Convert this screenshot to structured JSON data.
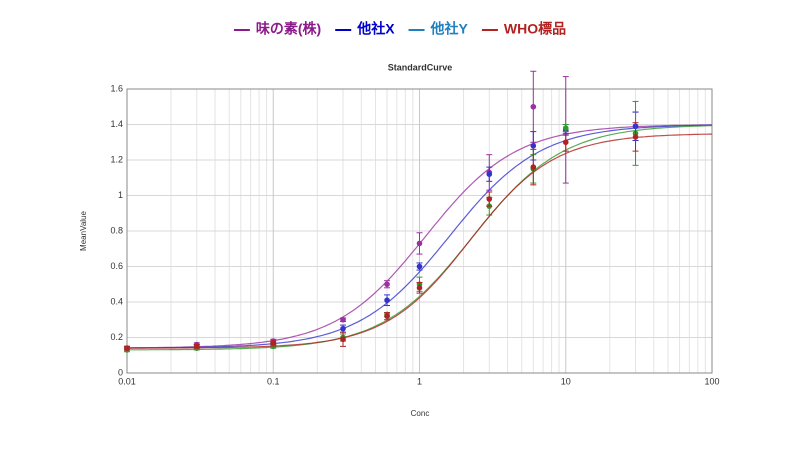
{
  "chart_data": {
    "type": "dose-response",
    "title": "StandardCurve",
    "x_label": "Conc",
    "y_label": "MeanValue",
    "x_scale": "log",
    "grid": true,
    "xlim": [
      0.01,
      100
    ],
    "xticks": [
      0.01,
      0.1,
      1,
      10,
      100
    ],
    "ylim": [
      0,
      1.6
    ],
    "yticks": [
      0,
      0.2,
      0.4,
      0.6,
      0.8,
      1,
      1.2,
      1.4,
      1.6
    ],
    "x": [
      0.01,
      0.03,
      0.1,
      0.3,
      0.6,
      1,
      3,
      6,
      10,
      30
    ],
    "series": [
      {
        "name": "味の素(株)",
        "color": "#9b30a0",
        "legend_color": "#8b1a8b",
        "values": [
          0.14,
          0.16,
          0.18,
          0.3,
          0.5,
          0.73,
          1.13,
          1.5,
          1.37,
          1.39
        ],
        "errors": [
          0.01,
          0.01,
          0.01,
          0.01,
          0.02,
          0.06,
          0.1,
          0.2,
          0.3,
          0.08
        ],
        "curve": {
          "bottom": 0.14,
          "top": 1.4,
          "ec50": 1.1,
          "hill": 1.4
        }
      },
      {
        "name": "他社X",
        "color": "#3333cc",
        "legend_color": "#0000cc",
        "values": [
          0.14,
          0.15,
          0.16,
          0.25,
          0.41,
          0.6,
          1.12,
          1.28,
          1.37,
          1.39
        ],
        "errors": [
          0.01,
          0.01,
          0.01,
          0.02,
          0.03,
          0.02,
          0.04,
          0.08,
          0.03,
          0.08
        ],
        "curve": {
          "bottom": 0.14,
          "top": 1.4,
          "ec50": 1.6,
          "hill": 1.4
        }
      },
      {
        "name": "他社Y",
        "color": "#2e9a2e",
        "legend_color": "#1f7fbf",
        "values": [
          0.13,
          0.14,
          0.15,
          0.2,
          0.33,
          0.5,
          0.94,
          1.15,
          1.38,
          1.35
        ],
        "errors": [
          0.01,
          0.01,
          0.01,
          0.02,
          0.01,
          0.04,
          0.05,
          0.08,
          0.02,
          0.18
        ],
        "curve": {
          "bottom": 0.13,
          "top": 1.4,
          "ec50": 2.3,
          "hill": 1.4
        }
      },
      {
        "name": "WHO標品",
        "color": "#b22222",
        "legend_color": "#b22222",
        "values": [
          0.14,
          0.15,
          0.17,
          0.19,
          0.32,
          0.48,
          0.98,
          1.16,
          1.3,
          1.33
        ],
        "errors": [
          0.01,
          0.01,
          0.01,
          0.04,
          0.02,
          0.03,
          0.04,
          0.1,
          0.05,
          0.08
        ],
        "curve": {
          "bottom": 0.14,
          "top": 1.35,
          "ec50": 2.2,
          "hill": 1.5
        }
      }
    ]
  }
}
